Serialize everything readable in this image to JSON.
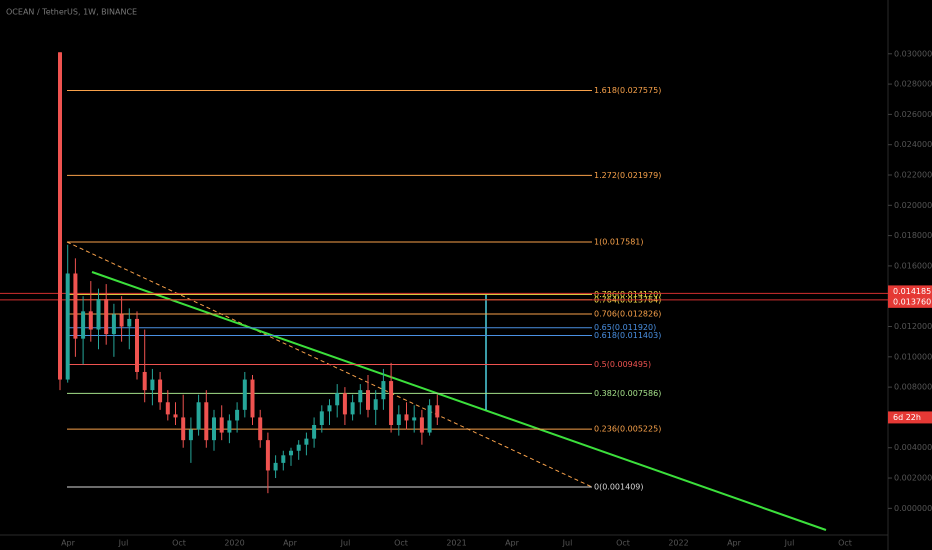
{
  "chart_data": {
    "type": "candlestick",
    "title": "OCEAN / TetherUS, 1W, BINANCE",
    "candles": {
      "open": [
        0.0301,
        0.0085,
        0.0155,
        0.0112,
        0.013,
        0.0118,
        0.0138,
        0.0115,
        0.0128,
        0.012,
        0.0125,
        0.009,
        0.0078,
        0.0085,
        0.007,
        0.0062,
        0.006,
        0.0045,
        0.0052,
        0.007,
        0.0045,
        0.006,
        0.005,
        0.0058,
        0.0065,
        0.0085,
        0.006,
        0.0045,
        0.0025,
        0.003,
        0.0035,
        0.0038,
        0.0042,
        0.0046,
        0.0055,
        0.0064,
        0.0068,
        0.0076,
        0.0062,
        0.007,
        0.0078,
        0.0065,
        0.0072,
        0.0084,
        0.0055,
        0.0062,
        0.0058,
        0.006,
        0.005,
        0.0068
      ],
      "high": [
        0.0301,
        0.0174,
        0.0165,
        0.014,
        0.015,
        0.0145,
        0.0148,
        0.0135,
        0.014,
        0.0132,
        0.013,
        0.0118,
        0.0092,
        0.009,
        0.0078,
        0.007,
        0.0075,
        0.006,
        0.0075,
        0.0078,
        0.0065,
        0.0068,
        0.0062,
        0.007,
        0.009,
        0.0088,
        0.0065,
        0.005,
        0.0035,
        0.0038,
        0.004,
        0.0045,
        0.005,
        0.006,
        0.0068,
        0.0072,
        0.0082,
        0.008,
        0.0075,
        0.0082,
        0.0088,
        0.0078,
        0.0092,
        0.0096,
        0.0068,
        0.007,
        0.0068,
        0.0065,
        0.0072,
        0.0075
      ],
      "low": [
        0.0078,
        0.0083,
        0.01,
        0.0095,
        0.011,
        0.0105,
        0.0108,
        0.01,
        0.011,
        0.0105,
        0.0085,
        0.007,
        0.0068,
        0.0065,
        0.0058,
        0.0055,
        0.004,
        0.003,
        0.0048,
        0.004,
        0.0038,
        0.0045,
        0.0043,
        0.005,
        0.006,
        0.0055,
        0.004,
        0.001,
        0.002,
        0.0025,
        0.0028,
        0.0032,
        0.0035,
        0.004,
        0.005,
        0.0055,
        0.006,
        0.0055,
        0.0058,
        0.0062,
        0.006,
        0.0055,
        0.0065,
        0.005,
        0.0048,
        0.0052,
        0.005,
        0.0042,
        0.0048,
        0.0055
      ],
      "close": [
        0.0085,
        0.0155,
        0.0112,
        0.013,
        0.0118,
        0.0138,
        0.0115,
        0.0128,
        0.012,
        0.0125,
        0.009,
        0.0078,
        0.0085,
        0.007,
        0.0062,
        0.006,
        0.0045,
        0.0052,
        0.007,
        0.0045,
        0.006,
        0.005,
        0.0058,
        0.0065,
        0.0085,
        0.006,
        0.0045,
        0.0025,
        0.003,
        0.0035,
        0.0038,
        0.0042,
        0.0046,
        0.0055,
        0.0064,
        0.0068,
        0.0076,
        0.0062,
        0.007,
        0.0078,
        0.0065,
        0.0072,
        0.0084,
        0.0055,
        0.0062,
        0.0058,
        0.006,
        0.005,
        0.0068,
        0.006
      ]
    },
    "up_color": "#26a69a",
    "down_color": "#ef5350",
    "fib": {
      "prices": [
        0.027575,
        0.021979,
        0.017581,
        0.01412,
        0.013764,
        0.012826,
        0.01192,
        0.011403,
        0.009495,
        0.007586,
        0.005225,
        0.001409
      ],
      "labels": [
        "1.618(0.027575)",
        "1.272(0.021979)",
        "1(0.017581)",
        "0.786(0.014120)",
        "0.764(0.013764)",
        "0.706(0.012826)",
        "0.65(0.011920)",
        "0.618(0.011403)",
        "0.5(0.009495)",
        "0.382(0.007586)",
        "0.236(0.005225)",
        "0(0.001409)"
      ],
      "colors": [
        "#f7a14a",
        "#f7a14a",
        "#f7a14a",
        "#f5e04a",
        "#f5e04a",
        "#f7a14a",
        "#4a90e2",
        "#4a90e2",
        "#ef5350",
        "#a5e08a",
        "#f7a14a",
        "#d8d8d8"
      ]
    },
    "alerts": {
      "prices": [
        0.014185,
        0.01376
      ],
      "labels": [
        "0.014185",
        "0.013760"
      ]
    },
    "countdown": "6d 22h",
    "ylim": [
      -0.00176,
      0.03355
    ],
    "yticks": [
      {
        "value": 0,
        "label": "0.000000"
      },
      {
        "value": 0.002,
        "label": "0.002000"
      },
      {
        "value": 0.004,
        "label": "0.004000"
      },
      {
        "value": 0.006,
        "label": "0.006000"
      },
      {
        "value": 0.008,
        "label": "0.008000"
      },
      {
        "value": 0.01,
        "label": "0.010000"
      },
      {
        "value": 0.012,
        "label": "0.012000"
      },
      {
        "value": 0.014,
        "label": "0.014000"
      },
      {
        "value": 0.016,
        "label": "0.016000"
      },
      {
        "value": 0.018,
        "label": "0.018000"
      },
      {
        "value": 0.02,
        "label": "0.020000"
      },
      {
        "value": 0.022,
        "label": "0.022000"
      },
      {
        "value": 0.024,
        "label": "0.024000"
      },
      {
        "value": 0.026,
        "label": "0.026000"
      },
      {
        "value": 0.028,
        "label": "0.028000"
      },
      {
        "value": 0.03,
        "label": "0.030000"
      }
    ],
    "time_labels": [
      "Apr",
      "Jul",
      "Oct",
      "2020",
      "Apr",
      "Jul",
      "Oct",
      "2021",
      "Apr",
      "Jul",
      "Oct",
      "2022",
      "Apr",
      "Jul",
      "Oct"
    ]
  }
}
